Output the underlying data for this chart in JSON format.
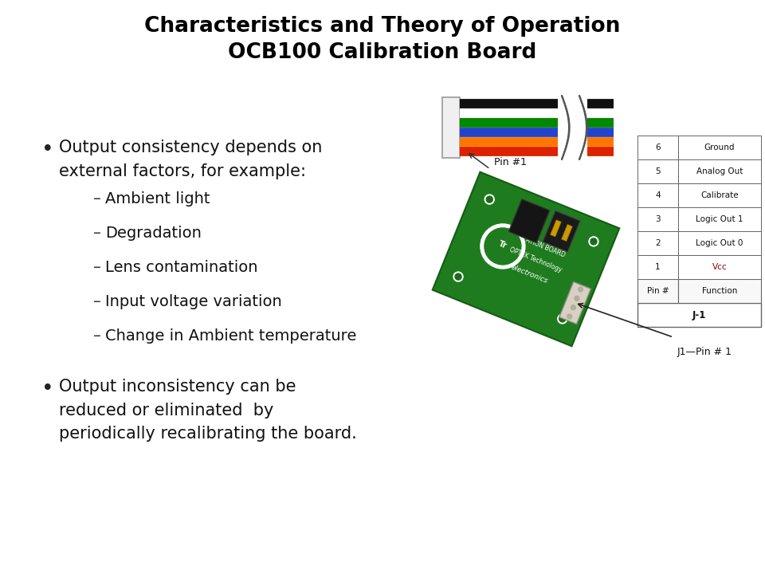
{
  "title_line1": "Characteristics and Theory of Operation",
  "title_line2": "OCB100 Calibration Board",
  "title_fontsize": 19,
  "title_color": "#000000",
  "bg_color": "#ffffff",
  "bullet1_line1": "Output consistency depends on",
  "bullet1_line2": "external factors, for example:",
  "subbullets": [
    "Ambient light",
    "Degradation",
    "Lens contamination",
    "Input voltage variation",
    "Change in Ambient temperature"
  ],
  "bullet2_line1": "Output inconsistency can be",
  "bullet2_line2": "reduced or eliminated  by",
  "bullet2_line3": "periodically recalibrating the board.",
  "bullet_fontsize": 15,
  "sub_fontsize": 14,
  "table_title": "J-1",
  "table_headers": [
    "Pin #",
    "Function"
  ],
  "table_rows": [
    [
      "1",
      "Vcc"
    ],
    [
      "2",
      "Logic Out 0"
    ],
    [
      "3",
      "Logic Out 1"
    ],
    [
      "4",
      "Calibrate"
    ],
    [
      "5",
      "Analog Out"
    ],
    [
      "6",
      "Ground"
    ]
  ],
  "j1_label": "J1—Pin # 1",
  "pin1_label": "Pin #1",
  "pcb_color": "#1e7c1e",
  "pcb_edge_color": "#155c15",
  "wire_colors": [
    "#cc2200",
    "#ff8800",
    "#0055cc",
    "#0055cc",
    "#00aa00",
    "#00aa00",
    "#ffffff",
    "#ffffff",
    "#000000",
    "#000000"
  ],
  "wire_colors_display": [
    "#dd2200",
    "#ff7700",
    "#1144cc",
    "#0066dd",
    "#009900",
    "#22bb00",
    "#dddddd",
    "#ffffff",
    "#111111",
    "#333333"
  ]
}
